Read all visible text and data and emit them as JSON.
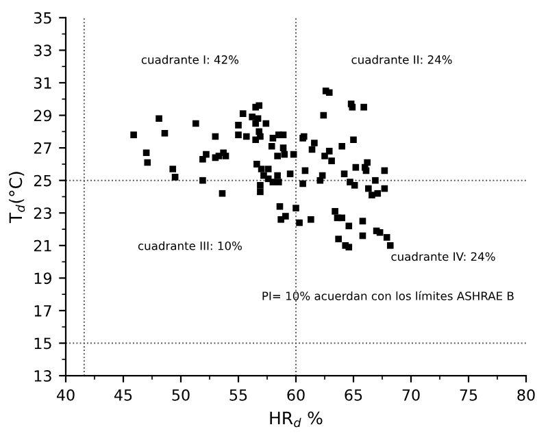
{
  "chart_data": {
    "type": "scatter",
    "xlabel": "HR$_{d}$ %",
    "ylabel": "T$_{d}$(°C)",
    "xlim": [
      40,
      80
    ],
    "xticks": [
      40,
      45,
      50,
      55,
      60,
      65,
      70,
      75,
      80
    ],
    "ylim": [
      13,
      35
    ],
    "yticks": [
      13,
      15,
      17,
      19,
      21,
      23,
      25,
      27,
      29,
      31,
      33,
      35
    ],
    "grid": false,
    "legend": false,
    "marker": "square",
    "annotations": [
      "cuadrante I: 42%",
      "cuadrante II: 24%",
      "cuadrante III: 10%",
      "cuadrante IV: 24%",
      "PI= 10% acuerdan con los límites ASHRAE B"
    ],
    "ref_lines": [
      {
        "axis": "x",
        "value": 41.6,
        "line_style": "dotted",
        "color": "#555555"
      },
      {
        "axis": "x",
        "value": 60,
        "line_style": "dotted",
        "color": "#555555"
      },
      {
        "axis": "y",
        "value": 25,
        "line_style": "dotted",
        "color": "#555555"
      },
      {
        "axis": "y",
        "value": 15,
        "line_style": "dotted",
        "color": "#555555"
      }
    ],
    "series": [
      {
        "color": "#000000",
        "x": [
          45.9,
          47.0,
          47.1,
          48.1,
          48.6,
          49.3,
          49.5,
          51.3,
          51.9,
          51.9,
          52.2,
          53.0,
          53.0,
          53.3,
          53.6,
          53.7,
          53.9,
          55.0,
          55.0,
          55.4,
          55.7,
          56.2,
          56.5,
          56.5,
          56.5,
          56.6,
          56.7,
          56.8,
          56.8,
          56.9,
          56.9,
          56.9,
          57.0,
          57.2,
          57.4,
          57.6,
          57.6,
          57.9,
          58.0,
          58.0,
          58.4,
          58.4,
          58.5,
          58.5,
          58.6,
          58.7,
          58.9,
          58.9,
          59.0,
          59.1,
          59.5,
          59.8,
          60.0,
          60.3,
          60.6,
          60.6,
          60.7,
          60.8,
          61.3,
          61.4,
          61.6,
          62.1,
          62.3,
          62.4,
          62.5,
          62.6,
          62.9,
          62.9,
          63.1,
          63.4,
          63.6,
          63.7,
          64.0,
          64.0,
          64.2,
          64.3,
          64.6,
          64.6,
          64.7,
          64.8,
          64.9,
          65.0,
          65.1,
          65.2,
          65.8,
          65.8,
          65.9,
          66.0,
          66.1,
          66.2,
          66.3,
          66.6,
          66.9,
          67.0,
          67.1,
          67.3,
          67.7,
          67.7,
          67.9,
          68.2
        ],
        "values": [
          27.8,
          26.7,
          26.1,
          28.8,
          27.9,
          25.7,
          25.2,
          28.5,
          26.3,
          25.0,
          26.6,
          27.7,
          26.4,
          26.5,
          24.2,
          26.7,
          26.5,
          28.4,
          27.8,
          29.1,
          27.7,
          28.9,
          29.5,
          28.5,
          27.5,
          26.0,
          28.8,
          29.6,
          28.0,
          27.7,
          24.7,
          24.3,
          25.7,
          25.3,
          28.5,
          25.7,
          25.1,
          27.1,
          27.6,
          24.9,
          25.3,
          26.5,
          27.8,
          24.9,
          23.4,
          22.6,
          27.8,
          27.0,
          26.6,
          22.8,
          25.4,
          26.6,
          23.3,
          22.4,
          27.6,
          24.8,
          27.7,
          25.6,
          22.6,
          26.9,
          27.3,
          25.0,
          25.3,
          29.0,
          26.5,
          30.5,
          30.4,
          26.8,
          26.2,
          23.1,
          22.7,
          21.4,
          22.7,
          27.1,
          25.4,
          21.0,
          20.9,
          22.2,
          24.9,
          29.7,
          29.5,
          27.5,
          24.7,
          25.8,
          22.5,
          21.6,
          29.5,
          25.8,
          25.6,
          26.1,
          24.5,
          24.1,
          25.0,
          21.9,
          24.2,
          21.8,
          25.6,
          24.5,
          21.5,
          21.0
        ]
      }
    ]
  }
}
